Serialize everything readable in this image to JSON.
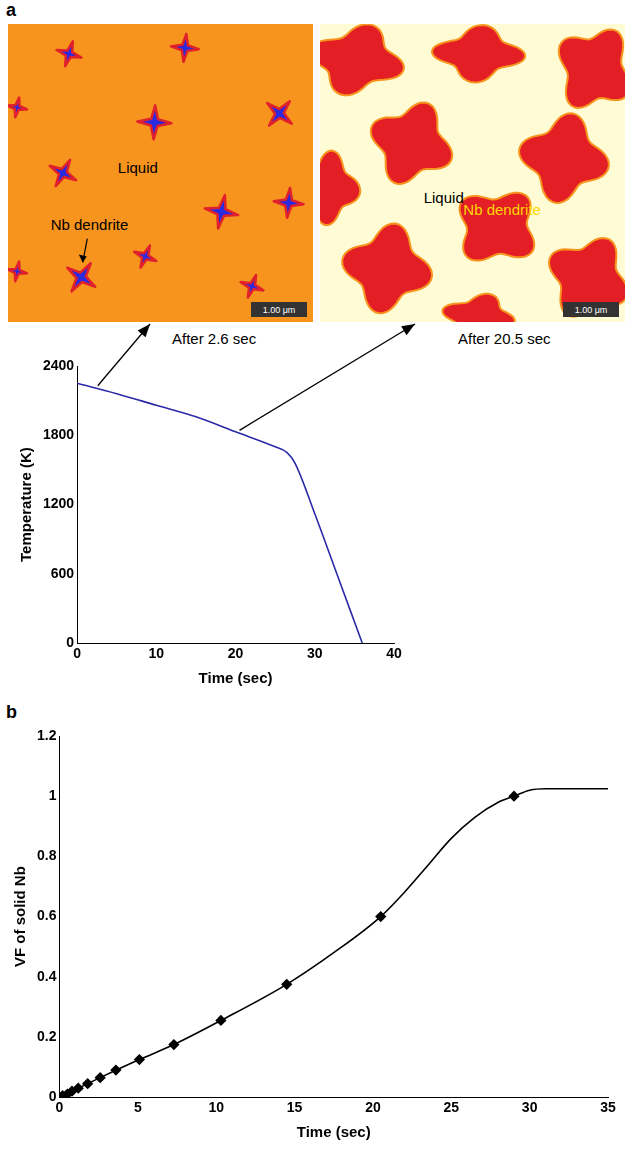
{
  "figure": {
    "panels": [
      "a",
      "b"
    ]
  },
  "images": [
    {
      "time": 2.6,
      "caption": "After 2.6 sec",
      "labels": [
        "Liquid",
        "Nb dendrite"
      ],
      "scale_bar": "1.00 μm"
    },
    {
      "time": 20.5,
      "caption": "After 20.5 sec",
      "labels": [
        "Liquid",
        "Nb dendrite"
      ],
      "scale_bar": "1.00 μm"
    }
  ],
  "chart_data": [
    {
      "type": "line",
      "x_label": "Time (sec)",
      "y_label": "Temperature (K)",
      "x": [
        0,
        5,
        10,
        15,
        20,
        25,
        26.5,
        27.5,
        30,
        33,
        36
      ],
      "values": [
        2250,
        2160,
        2060,
        1960,
        1830,
        1700,
        1650,
        1560,
        1120,
        560,
        0
      ],
      "color": "#2b2ba8",
      "marker": "none",
      "grid": false,
      "xlim": [
        0,
        40
      ],
      "xticks": [
        0,
        10,
        20,
        30,
        40
      ],
      "ylim": [
        0,
        2400
      ],
      "yticks": [
        0,
        600,
        1200,
        1800,
        2400
      ]
    },
    {
      "type": "line",
      "x_label": "Time (sec)",
      "y_label": "VF of solid Nb",
      "grid": false,
      "series": [
        {
          "type": "line",
          "color": "#000000",
          "marker": "none",
          "x": [
            0,
            1,
            2.6,
            5.1,
            7.3,
            10.3,
            14.5,
            17.5,
            20.5,
            22,
            23.5,
            25,
            26.5,
            28,
            29,
            30,
            31,
            33,
            35
          ],
          "values": [
            0,
            0.025,
            0.065,
            0.125,
            0.175,
            0.255,
            0.375,
            0.48,
            0.6,
            0.68,
            0.77,
            0.86,
            0.93,
            0.98,
            1.0,
            1.02,
            1.025,
            1.025,
            1.025
          ]
        },
        {
          "type": "scatter",
          "color": "#000000",
          "marker": "diamond",
          "x": [
            0,
            0.2,
            0.5,
            0.8,
            1.2,
            1.8,
            2.6,
            3.6,
            5.1,
            7.3,
            10.3,
            14.5,
            20.5,
            29
          ],
          "values": [
            0,
            0.005,
            0.01,
            0.02,
            0.03,
            0.045,
            0.065,
            0.09,
            0.125,
            0.175,
            0.255,
            0.375,
            0.6,
            1.0
          ]
        }
      ],
      "xlim": [
        0,
        35
      ],
      "xticks": [
        0,
        5,
        10,
        15,
        20,
        25,
        30,
        35
      ],
      "ylim": [
        0,
        1.2
      ],
      "yticks": [
        0,
        0.2,
        0.4,
        0.6,
        0.8,
        1,
        1.2
      ]
    }
  ]
}
